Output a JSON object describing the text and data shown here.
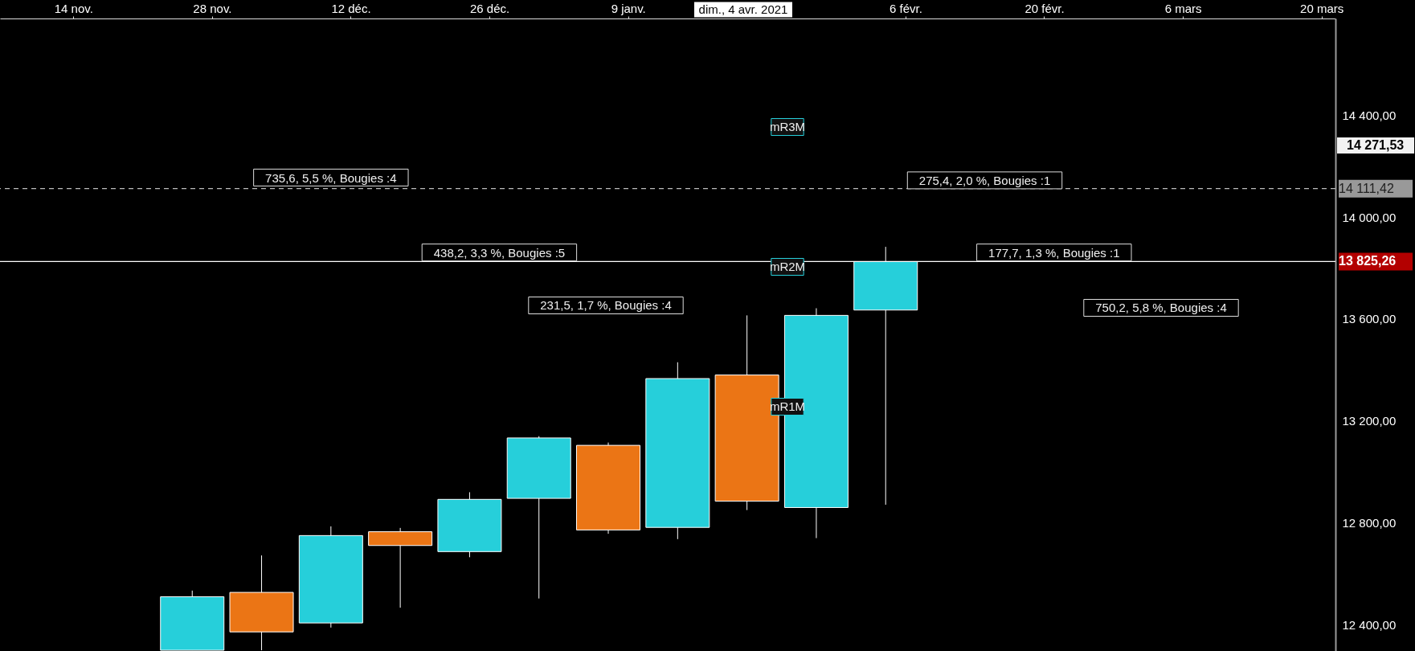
{
  "chart_data": {
    "type": "candlestick",
    "x": [
      "2020-11-26",
      "2020-12-03",
      "2020-12-10",
      "2020-12-17",
      "2020-12-24",
      "2020-12-31",
      "2021-01-07",
      "2021-01-14",
      "2021-01-21",
      "2021-01-28",
      "2021-02-04"
    ],
    "ohlc": [
      [
        12300,
        12534,
        12300,
        12510
      ],
      [
        12527,
        12672,
        12300,
        12372
      ],
      [
        12407,
        12786,
        12389,
        12750
      ],
      [
        12765,
        12780,
        12467,
        12711
      ],
      [
        12687,
        12920,
        12665,
        12892
      ],
      [
        12896,
        13140,
        12503,
        13133
      ],
      [
        13104,
        13115,
        12757,
        12772
      ],
      [
        12782,
        13430,
        12736,
        13366
      ],
      [
        13380,
        13614,
        12850,
        12885
      ],
      [
        12860,
        13642,
        12740,
        13614
      ],
      [
        13635,
        13883,
        12871,
        13825
      ]
    ],
    "colors": [
      "#26cfda",
      "#eb7515",
      "#26cfda",
      "#eb7515",
      "#26cfda",
      "#26cfda",
      "#eb7515",
      "#26cfda",
      "#eb7515",
      "#26cfda",
      "#26cfda"
    ],
    "xlim": [
      "2020-11-07",
      "2021-03-21"
    ],
    "xticks": [
      {
        "value": "2020-11-14",
        "label": "14 nov."
      },
      {
        "value": "2020-11-28",
        "label": "28 nov."
      },
      {
        "value": "2020-12-12",
        "label": "12 déc."
      },
      {
        "value": "2020-12-26",
        "label": "26 déc."
      },
      {
        "value": "2021-01-09",
        "label": "9 janv."
      },
      {
        "value": "2021-02-06",
        "label": "6 févr."
      },
      {
        "value": "2021-02-20",
        "label": "20 févr."
      },
      {
        "value": "2021-03-06",
        "label": "6 mars"
      },
      {
        "value": "2021-03-20",
        "label": "20 mars"
      }
    ],
    "ylim": [
      12297,
      14779
    ],
    "yticks": [
      {
        "value": 12400,
        "label": "12 400,00"
      },
      {
        "value": 12800,
        "label": "12 800,00"
      },
      {
        "value": 13200,
        "label": "13 200,00"
      },
      {
        "value": 13600,
        "label": "13 600,00"
      },
      {
        "value": 14000,
        "label": "14 000,00"
      },
      {
        "value": 14400,
        "label": "14 400,00"
      }
    ],
    "ref_lines": [
      {
        "axis": "y",
        "value": 13825.26,
        "label": "13 825,26",
        "color": "#ffffff",
        "line_style": "solid"
      },
      {
        "axis": "y",
        "value": 14111.42,
        "label": "14 111,42",
        "color": "#bbbbbb",
        "line_style": "dashed"
      }
    ],
    "annotations": [
      {
        "text": "735,6, 5,5 %, Bougies :4",
        "x": "2020-12-10",
        "y": 14117
      },
      {
        "text": "438,2, 3,3 %, Bougies :5",
        "x": "2020-12-27",
        "y": 13823
      },
      "231,5, 1,7 %, Bougies :4",
      {
        "text": "275,4, 2,0 %, Bougies :1",
        "x": "2021-02-14",
        "y": 14106
      },
      {
        "text": "177,7, 1,3 %, Bougies :1",
        "x": "2021-02-21",
        "y": 13823
      },
      "750,2, 5,8 %, Bougies :4",
      "mR3M",
      "mR2M",
      "mR1M",
      "14 271,53",
      "dim., 4 avr. 2021"
    ],
    "grid": false
  }
}
